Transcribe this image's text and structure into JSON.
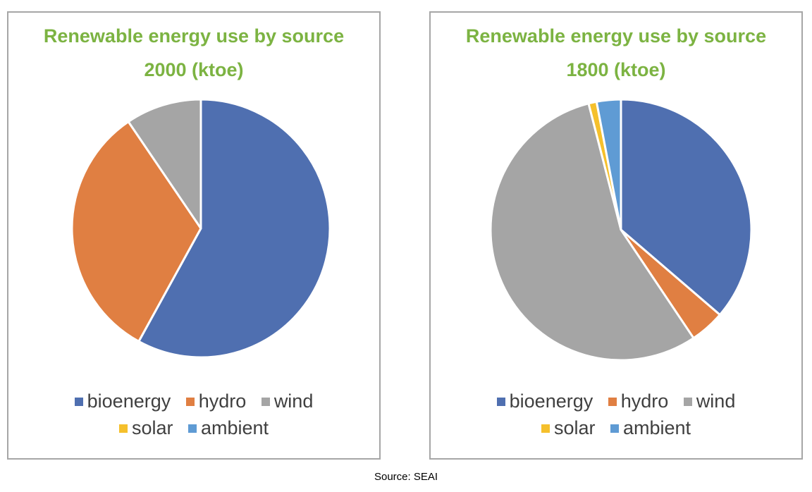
{
  "colors": {
    "bioenergy": "#4f6fb0",
    "hydro": "#e07f42",
    "wind": "#a5a5a5",
    "solar": "#f5c02c",
    "ambient": "#5f9bd4",
    "title": "#7cb342"
  },
  "chart_data": [
    {
      "type": "pie",
      "title": "Renewable energy use by source",
      "subtitle": "2000 (ktoe)",
      "categories": [
        "bioenergy",
        "hydro",
        "wind",
        "solar",
        "ambient"
      ],
      "values": [
        58,
        32.5,
        9.5,
        0,
        0
      ],
      "legend": "bottom"
    },
    {
      "type": "pie",
      "title": "Renewable energy use by source",
      "subtitle": "1800 (ktoe)",
      "categories": [
        "bioenergy",
        "hydro",
        "wind",
        "solar",
        "ambient"
      ],
      "values": [
        36.3,
        4.3,
        55.4,
        1.0,
        3.0
      ],
      "legend": "bottom"
    }
  ],
  "footer": "Source: SEAI"
}
